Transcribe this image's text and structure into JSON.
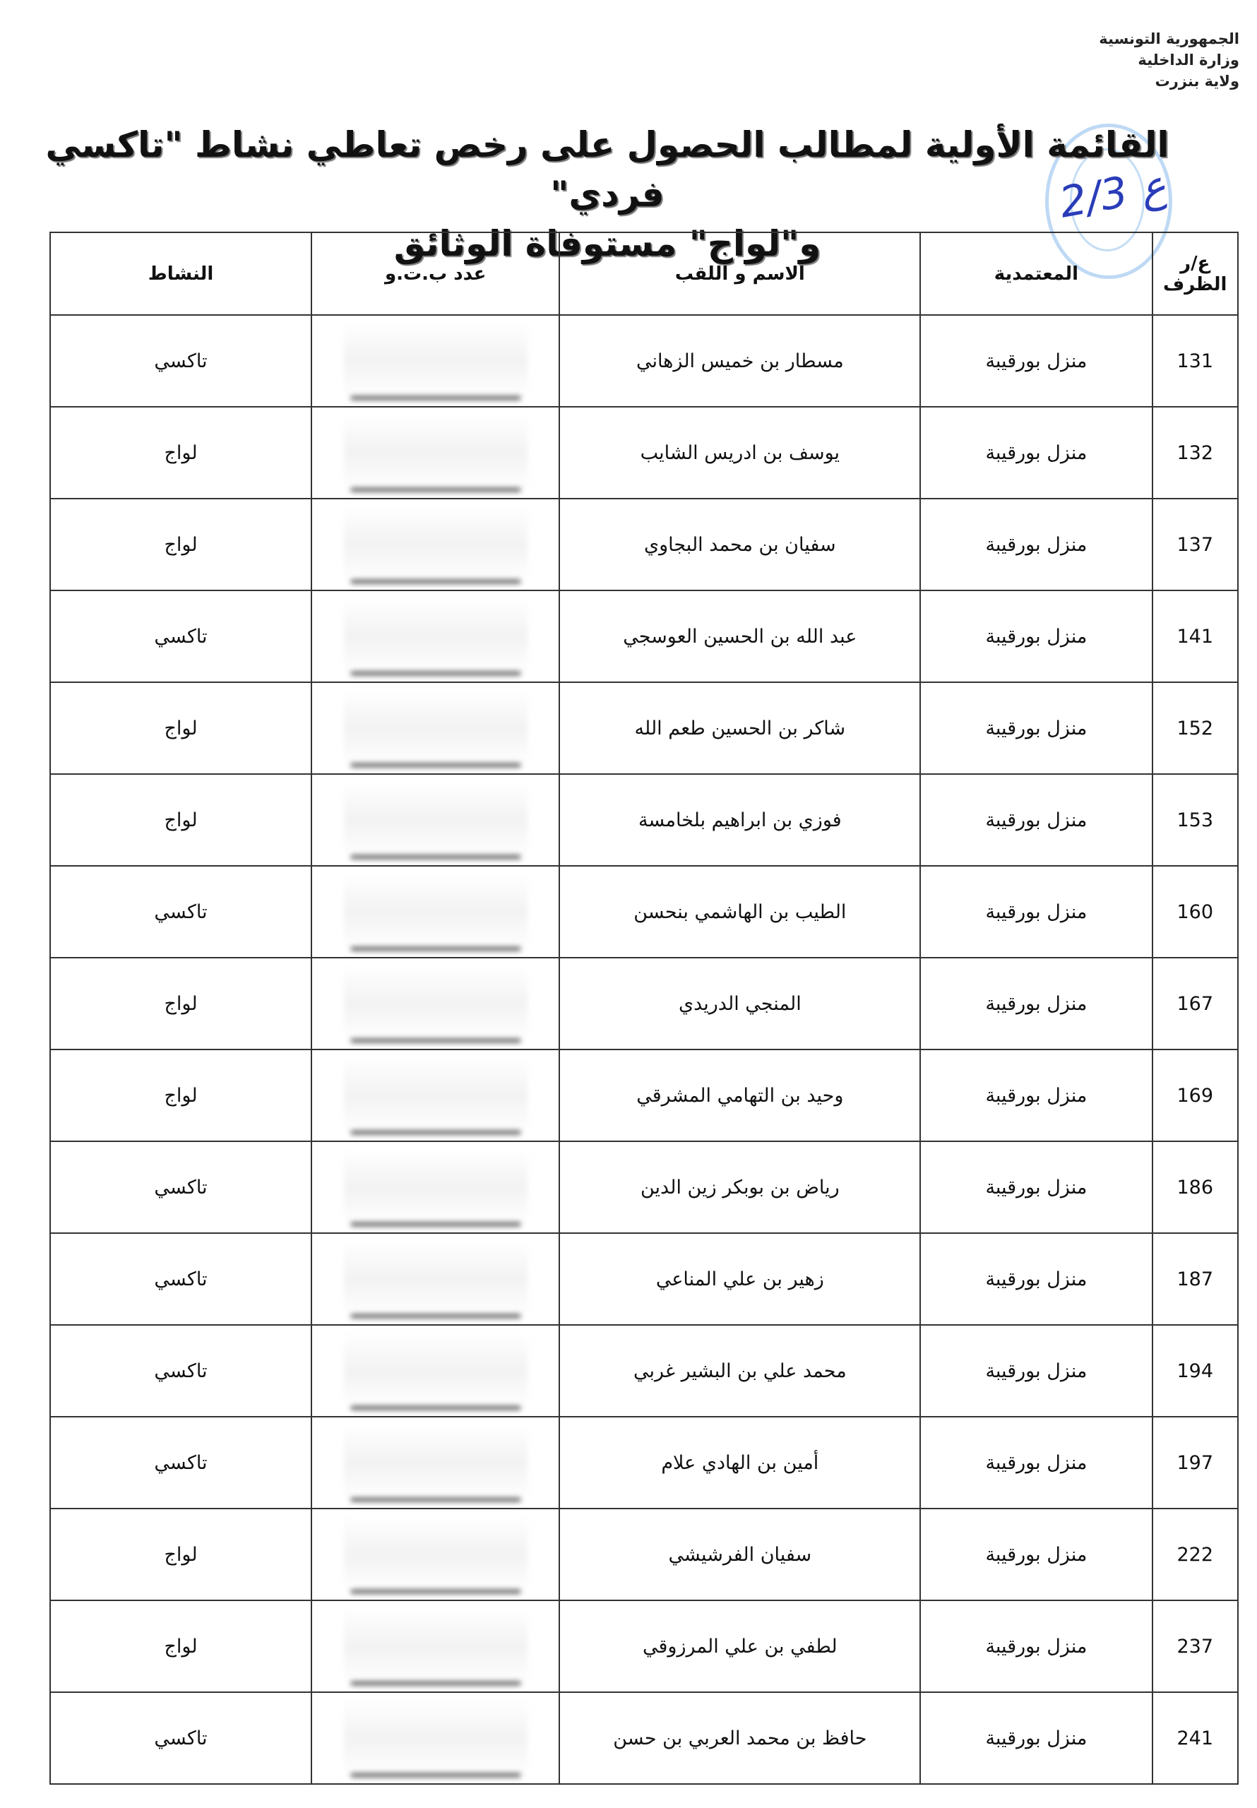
{
  "header": {
    "lines": [
      "الجمهورية التونسية",
      "وزارة الداخلية",
      "ولاية بنزرت"
    ]
  },
  "title": {
    "line1": "القائمة الأولية لمطالب الحصول على رخص تعاطي نشاط \"تاكسي فردي\"",
    "line2": "و\"لواج\" مستوفاة الوثائق"
  },
  "signature": "ع 2/3",
  "table": {
    "headers": {
      "id": "ع/ر الظرف",
      "delegation": "المعتمدية",
      "name": "الاسم و اللقب",
      "cin": "عدد ب.ت.و",
      "activity": "النشاط"
    },
    "rows": [
      {
        "id": "131",
        "delegation": "منزل بورقيبة",
        "name": "مسطار بن خميس الزهاني",
        "activity": "تاكسي"
      },
      {
        "id": "132",
        "delegation": "منزل بورقيبة",
        "name": "يوسف بن ادريس الشايب",
        "activity": "لواج"
      },
      {
        "id": "137",
        "delegation": "منزل بورقيبة",
        "name": "سفيان بن محمد البجاوي",
        "activity": "لواج"
      },
      {
        "id": "141",
        "delegation": "منزل بورقيبة",
        "name": "عبد الله بن الحسين العوسجي",
        "activity": "تاكسي"
      },
      {
        "id": "152",
        "delegation": "منزل بورقيبة",
        "name": "شاكر بن الحسين طعم الله",
        "activity": "لواج"
      },
      {
        "id": "153",
        "delegation": "منزل بورقيبة",
        "name": "فوزي بن ابراهيم بلخامسة",
        "activity": "لواج"
      },
      {
        "id": "160",
        "delegation": "منزل بورقيبة",
        "name": "الطيب بن الهاشمي بنحسن",
        "activity": "تاكسي"
      },
      {
        "id": "167",
        "delegation": "منزل بورقيبة",
        "name": "المنجي الدريدي",
        "activity": "لواج"
      },
      {
        "id": "169",
        "delegation": "منزل بورقيبة",
        "name": "وحيد بن التهامي المشرقي",
        "activity": "لواج"
      },
      {
        "id": "186",
        "delegation": "منزل بورقيبة",
        "name": "رياض بن بوبكر زين الدين",
        "activity": "تاكسي"
      },
      {
        "id": "187",
        "delegation": "منزل بورقيبة",
        "name": "زهير بن علي المناعي",
        "activity": "تاكسي"
      },
      {
        "id": "194",
        "delegation": "منزل بورقيبة",
        "name": "محمد علي بن البشير غربي",
        "activity": "تاكسي"
      },
      {
        "id": "197",
        "delegation": "منزل بورقيبة",
        "name": "أمين بن الهادي علام",
        "activity": "تاكسي"
      },
      {
        "id": "222",
        "delegation": "منزل بورقيبة",
        "name": "سفيان الفرشيشي",
        "activity": "لواج"
      },
      {
        "id": "237",
        "delegation": "منزل بورقيبة",
        "name": "لطفي بن علي المرزوقي",
        "activity": "لواج"
      },
      {
        "id": "241",
        "delegation": "منزل بورقيبة",
        "name": "حافظ بن محمد العربي بن حسن",
        "activity": "تاكسي"
      }
    ]
  }
}
